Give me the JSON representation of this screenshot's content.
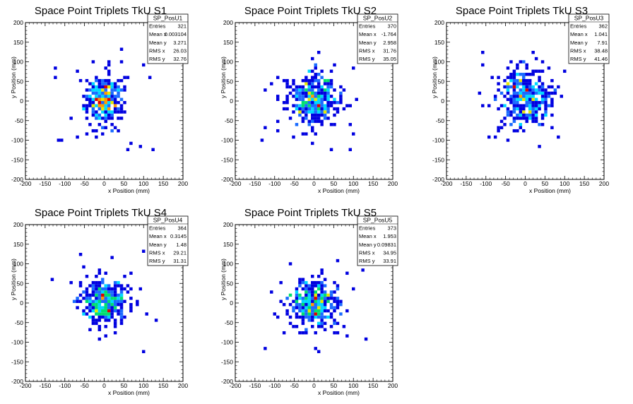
{
  "chart_data": [
    {
      "type": "heatmap",
      "title": "Space Point Triplets TkU S1",
      "xlabel": "x Position (mm)",
      "ylabel": "y Position (mm)",
      "xlim": [
        -200,
        200
      ],
      "ylim": [
        -200,
        200
      ],
      "xticks": [
        "-200",
        "-150",
        "-100",
        "-50",
        "0",
        "50",
        "100",
        "150",
        "200"
      ],
      "yticks": [
        "-200",
        "-150",
        "-100",
        "-50",
        "0",
        "50",
        "100",
        "150",
        "200"
      ],
      "stats": {
        "name": "SP_PosU1",
        "rows": [
          [
            "Entries",
            "321"
          ],
          [
            "Mean x",
            "0.003104"
          ],
          [
            "Mean y",
            "3.271"
          ],
          [
            "RMS x",
            "26.03"
          ],
          [
            "RMS y",
            "32.76"
          ]
        ]
      },
      "cloud": {
        "seed": 11,
        "center": [
          0,
          3
        ],
        "rms": [
          26,
          32.8
        ],
        "entries": 321
      }
    },
    {
      "type": "heatmap",
      "title": "Space Point Triplets TkU S2",
      "xlabel": "x Position (mm)",
      "ylabel": "y Position (mm)",
      "xlim": [
        -200,
        200
      ],
      "ylim": [
        -200,
        200
      ],
      "xticks": [
        "-200",
        "-150",
        "-100",
        "-50",
        "0",
        "50",
        "100",
        "150",
        "200"
      ],
      "yticks": [
        "-200",
        "-150",
        "-100",
        "-50",
        "0",
        "50",
        "100",
        "150",
        "200"
      ],
      "stats": {
        "name": "SP_PosU2",
        "rows": [
          [
            "Entries",
            "370"
          ],
          [
            "Mean x",
            "-1.764"
          ],
          [
            "Mean y",
            "2.958"
          ],
          [
            "RMS x",
            "31.76"
          ],
          [
            "RMS y",
            "35.05"
          ]
        ]
      },
      "cloud": {
        "seed": 23,
        "center": [
          -2,
          3
        ],
        "rms": [
          31.8,
          35
        ],
        "entries": 370
      }
    },
    {
      "type": "heatmap",
      "title": "Space Point Triplets TkU S3",
      "xlabel": "x Position (mm)",
      "ylabel": "y Position (mm)",
      "xlim": [
        -200,
        200
      ],
      "ylim": [
        -200,
        200
      ],
      "xticks": [
        "-200",
        "-150",
        "-100",
        "-50",
        "0",
        "50",
        "100",
        "150",
        "200"
      ],
      "yticks": [
        "-200",
        "-150",
        "-100",
        "-50",
        "0",
        "50",
        "100",
        "150",
        "200"
      ],
      "stats": {
        "name": "SP_PosU3",
        "rows": [
          [
            "Entries",
            "362"
          ],
          [
            "Mean x",
            "1.041"
          ],
          [
            "Mean y",
            "7.91"
          ],
          [
            "RMS x",
            "38.48"
          ],
          [
            "RMS y",
            "41.46"
          ]
        ]
      },
      "cloud": {
        "seed": 37,
        "center": [
          1,
          8
        ],
        "rms": [
          38.5,
          41.5
        ],
        "entries": 362
      }
    },
    {
      "type": "heatmap",
      "title": "Space Point Triplets TkU S4",
      "xlabel": "x Position (mm)",
      "ylabel": "y Position (mm)",
      "xlim": [
        -200,
        200
      ],
      "ylim": [
        -200,
        200
      ],
      "xticks": [
        "-200",
        "-150",
        "-100",
        "-50",
        "0",
        "50",
        "100",
        "150",
        "200"
      ],
      "yticks": [
        "-200",
        "-150",
        "-100",
        "-50",
        "0",
        "50",
        "100",
        "150",
        "200"
      ],
      "stats": {
        "name": "SP_PosU4",
        "rows": [
          [
            "Entries",
            "364"
          ],
          [
            "Mean x",
            "0.3145"
          ],
          [
            "Mean y",
            "1.48"
          ],
          [
            "RMS x",
            "29.21"
          ],
          [
            "RMS y",
            "31.31"
          ]
        ]
      },
      "cloud": {
        "seed": 41,
        "center": [
          0,
          1.5
        ],
        "rms": [
          29.2,
          31.3
        ],
        "entries": 364
      }
    },
    {
      "type": "heatmap",
      "title": "Space Point Triplets TkU S5",
      "xlabel": "x Position (mm)",
      "ylabel": "y Position (mm)",
      "xlim": [
        -200,
        200
      ],
      "ylim": [
        -200,
        200
      ],
      "xticks": [
        "-200",
        "-150",
        "-100",
        "-50",
        "0",
        "50",
        "100",
        "150",
        "200"
      ],
      "yticks": [
        "-200",
        "-150",
        "-100",
        "-50",
        "0",
        "50",
        "100",
        "150",
        "200"
      ],
      "stats": {
        "name": "SP_PosU5",
        "rows": [
          [
            "Entries",
            "373"
          ],
          [
            "Mean x",
            "1.953"
          ],
          [
            "Mean y",
            "0.09831"
          ],
          [
            "RMS x",
            "34.95"
          ],
          [
            "RMS y",
            "33.91"
          ]
        ]
      },
      "cloud": {
        "seed": 53,
        "center": [
          2,
          0
        ],
        "rms": [
          35,
          33.9
        ],
        "entries": 373
      }
    }
  ],
  "colors": {
    "palette": [
      "#0000e0",
      "#1a6bff",
      "#00d8ff",
      "#00e070",
      "#e8e800",
      "#ff9a00",
      "#e00000"
    ],
    "frame": "#000000",
    "background": "#ffffff"
  }
}
